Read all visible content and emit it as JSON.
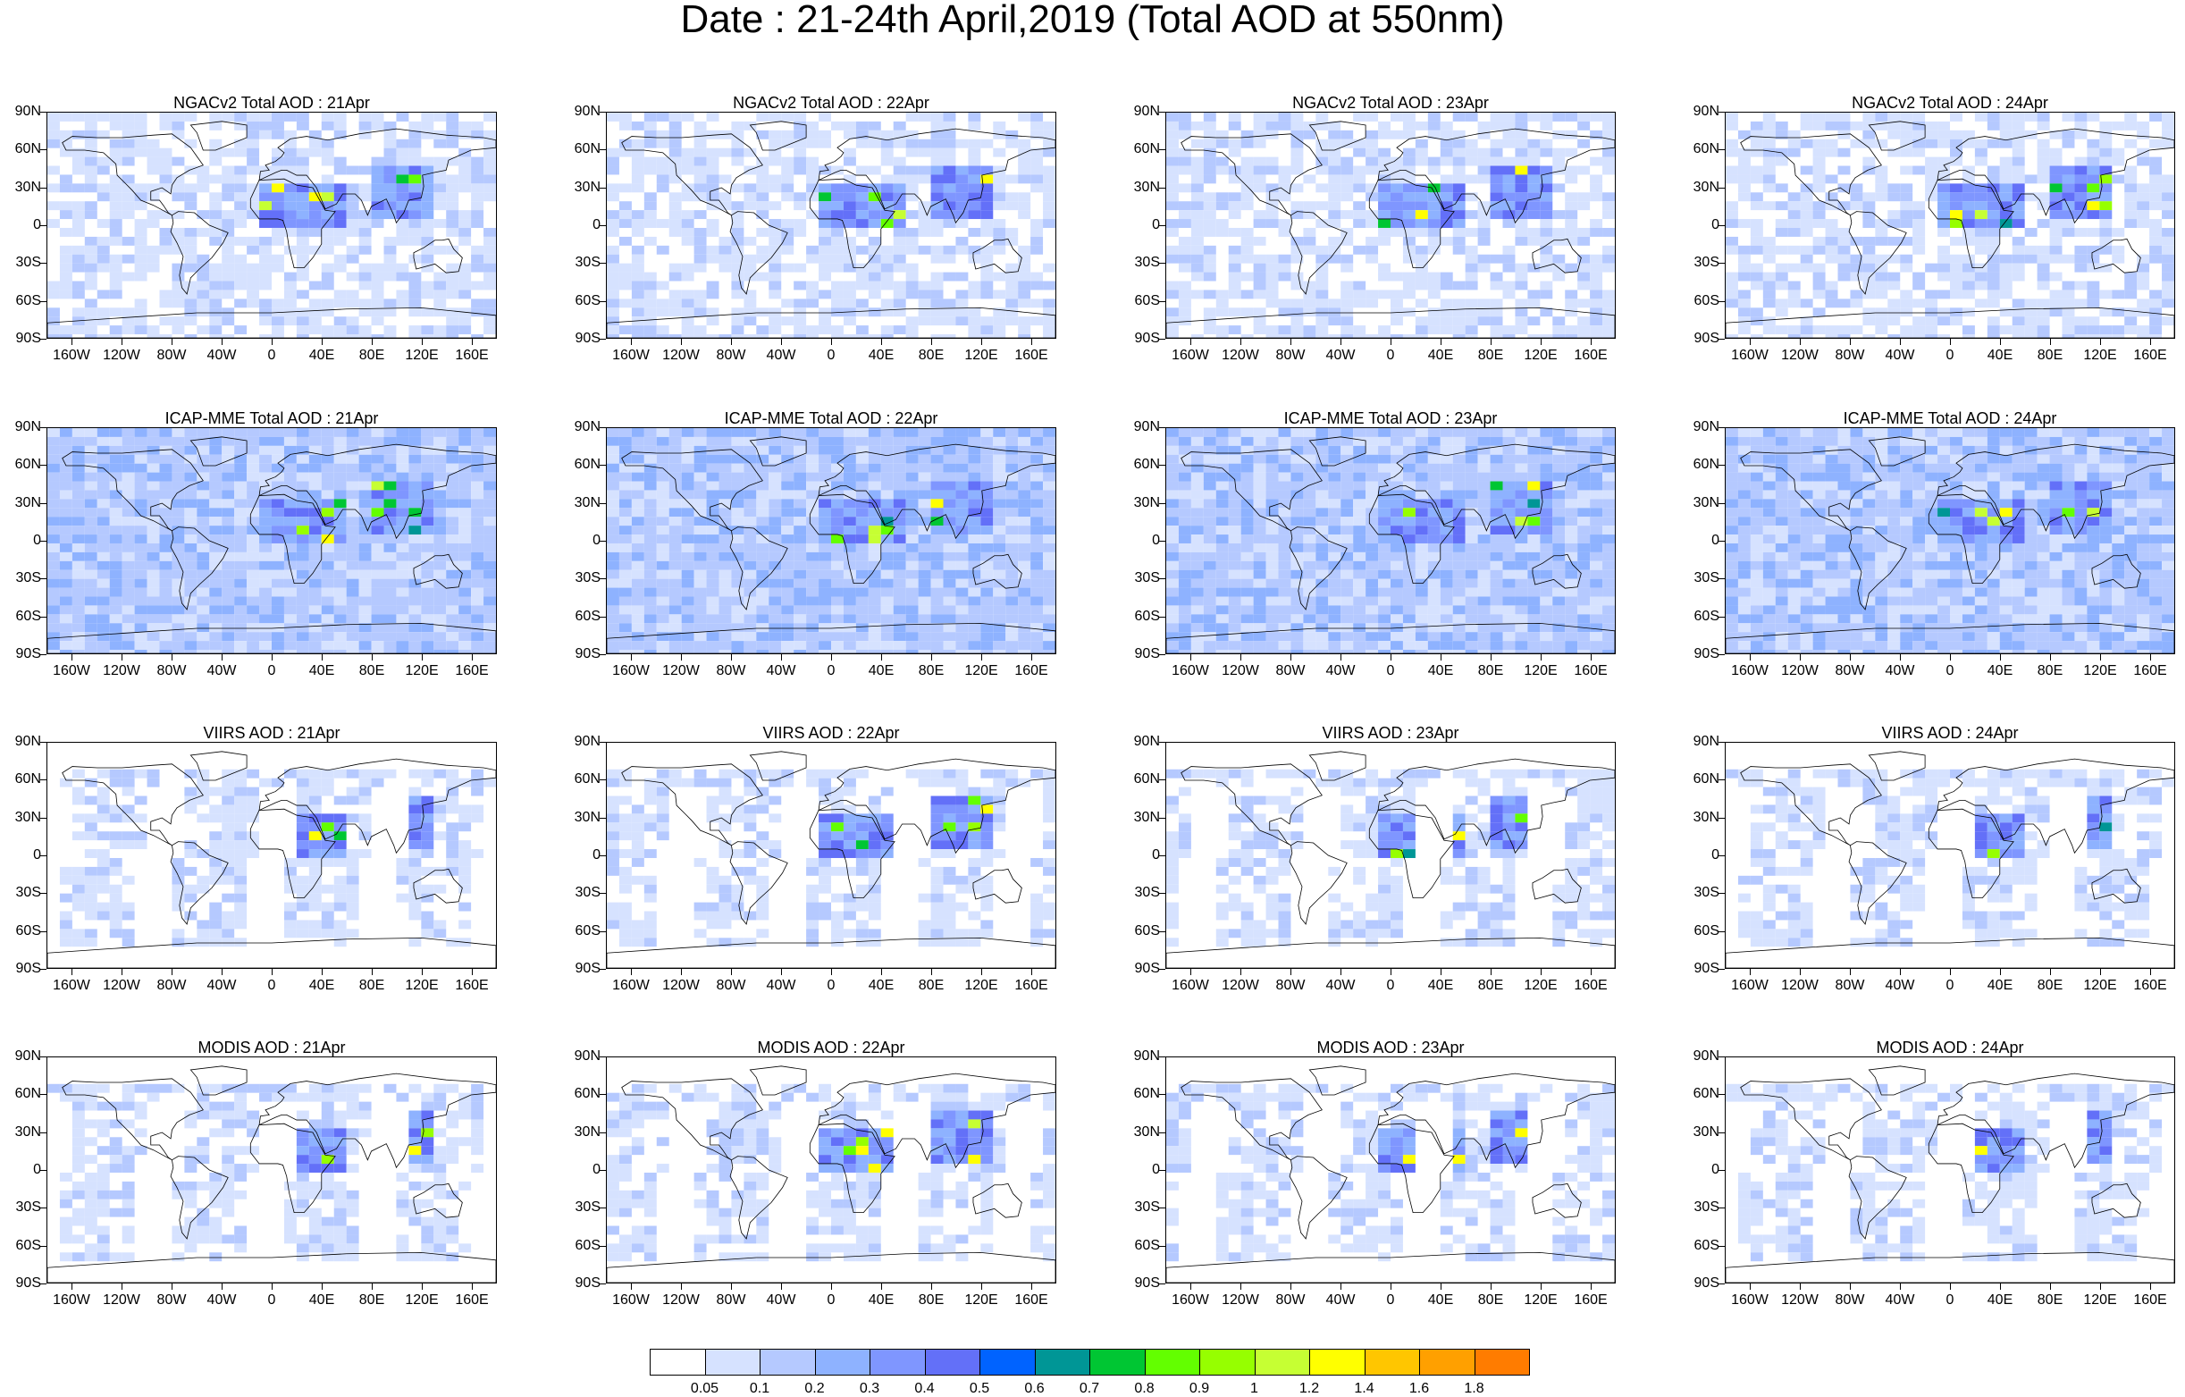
{
  "title": "Date : 21-24th April,2019 (Total AOD at 550nm)",
  "panels": [
    [
      "NGACv2 Total AOD : 21Apr",
      "NGACv2 Total AOD : 22Apr",
      "NGACv2 Total AOD : 23Apr",
      "NGACv2 Total AOD : 24Apr"
    ],
    [
      "ICAP-MME Total AOD : 21Apr",
      "ICAP-MME Total AOD : 22Apr",
      "ICAP-MME Total AOD : 23Apr",
      "ICAP-MME Total AOD : 24Apr"
    ],
    [
      "VIIRS AOD : 21Apr",
      "VIIRS AOD : 22Apr",
      "VIIRS AOD : 23Apr",
      "VIIRS AOD : 24Apr"
    ],
    [
      "MODIS AOD : 21Apr",
      "MODIS AOD : 22Apr",
      "MODIS AOD : 23Apr",
      "MODIS AOD : 24Apr"
    ]
  ],
  "lat_labels": [
    "90N",
    "60N",
    "30N",
    "0",
    "30S",
    "60S",
    "90S"
  ],
  "lon_labels": [
    "160W",
    "120W",
    "80W",
    "40W",
    "0",
    "40E",
    "80E",
    "120E",
    "160E"
  ],
  "colorbar": {
    "labels": [
      "0.05",
      "0.1",
      "0.2",
      "0.3",
      "0.4",
      "0.5",
      "0.6",
      "0.7",
      "0.8",
      "0.9",
      "1",
      "1.2",
      "1.4",
      "1.6",
      "1.8"
    ],
    "colors": [
      "#ffffff",
      "#d6e2ff",
      "#b5c9ff",
      "#8eb2ff",
      "#7f96ff",
      "#6370f8",
      "#0063ff",
      "#009696",
      "#00c633",
      "#63ff00",
      "#96ff00",
      "#c6ff33",
      "#ffff00",
      "#ffc600",
      "#ffa000",
      "#ff7c00",
      "#ff1900"
    ]
  }
}
